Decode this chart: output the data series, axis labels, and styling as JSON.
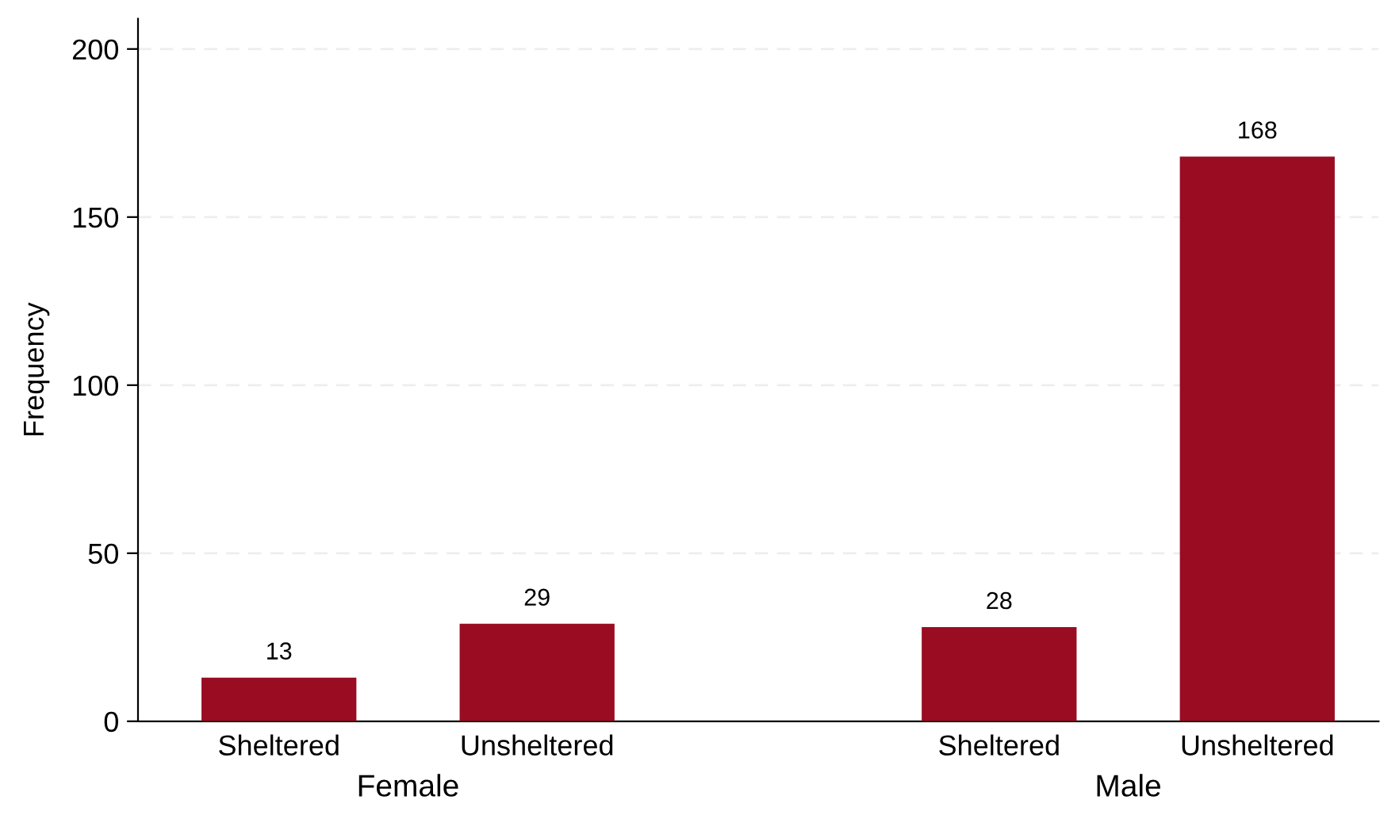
{
  "chart_data": {
    "type": "bar",
    "ylabel": "Frequency",
    "categories": [
      "Sheltered",
      "Unsheltered",
      "Sheltered",
      "Unsheltered"
    ],
    "values": [
      13,
      29,
      28,
      168
    ],
    "color": "#990c22",
    "ylim": [
      0,
      209
    ],
    "yticks": [
      0,
      50,
      100,
      150,
      200
    ],
    "grid": "y",
    "data_labels": true,
    "annotations": [
      "Female",
      "Male"
    ]
  }
}
